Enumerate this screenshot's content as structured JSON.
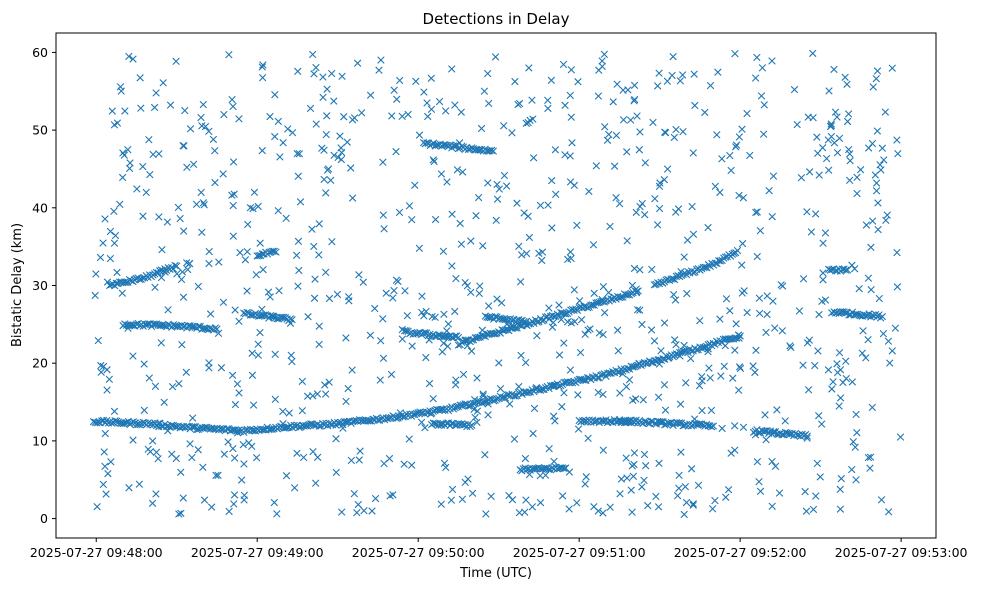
{
  "chart_data": {
    "type": "scatter",
    "title": "Detections in Delay",
    "xlabel": "Time (UTC)",
    "ylabel": "Bistatic Delay (km)",
    "x_unit": "time",
    "xlim": [
      "2025-07-27 09:47:45",
      "2025-07-27 09:53:13"
    ],
    "ylim": [
      -2.5,
      62.5
    ],
    "x_ticks": [
      "2025-07-27 09:48:00",
      "2025-07-27 09:49:00",
      "2025-07-27 09:50:00",
      "2025-07-27 09:51:00",
      "2025-07-27 09:52:00",
      "2025-07-27 09:53:00"
    ],
    "y_ticks": [
      0,
      10,
      20,
      30,
      40,
      50,
      60
    ],
    "marker": "x",
    "color": "#1f77b4",
    "grid": false,
    "legend": "none",
    "tracks": [
      {
        "t": [
          "09:47:59",
          "09:48:20",
          "09:48:35",
          "09:48:55",
          "09:49:10",
          "09:49:30",
          "09:49:50",
          "09:50:10",
          "09:50:30",
          "09:50:50",
          "09:51:10",
          "09:51:30",
          "09:51:45",
          "09:52:00"
        ],
        "y": [
          12.5,
          12.2,
          11.7,
          11.3,
          11.8,
          12.2,
          13.0,
          14.0,
          15.5,
          17.0,
          18.5,
          20.5,
          22.0,
          23.5
        ]
      },
      {
        "t": [
          "09:50:15",
          "09:50:30",
          "09:50:45",
          "09:51:00",
          "09:51:15",
          "09:51:22"
        ],
        "y": [
          22.5,
          24.0,
          25.5,
          27.0,
          28.5,
          29.3
        ]
      },
      {
        "t": [
          "09:48:05",
          "09:48:18",
          "09:48:30"
        ],
        "y": [
          30.0,
          31.0,
          32.5
        ]
      },
      {
        "t": [
          "09:49:00",
          "09:49:07"
        ],
        "y": [
          33.9,
          34.3
        ]
      },
      {
        "t": [
          "09:51:28",
          "09:51:40",
          "09:51:52",
          "09:51:59"
        ],
        "y": [
          30.0,
          31.5,
          33.0,
          34.5
        ]
      },
      {
        "t": [
          "09:48:10",
          "09:48:30",
          "09:48:45"
        ],
        "y": [
          25.0,
          24.8,
          24.4
        ]
      },
      {
        "t": [
          "09:48:55",
          "09:49:13"
        ],
        "y": [
          26.4,
          25.6
        ]
      },
      {
        "t": [
          "09:49:55",
          "09:50:15"
        ],
        "y": [
          24.0,
          23.3
        ]
      },
      {
        "t": [
          "09:50:25",
          "09:50:40"
        ],
        "y": [
          26.0,
          25.3
        ]
      },
      {
        "t": [
          "09:50:02",
          "09:50:28"
        ],
        "y": [
          48.3,
          47.3
        ]
      },
      {
        "t": [
          "09:51:15",
          "09:51:50"
        ],
        "y": [
          12.6,
          11.9
        ]
      },
      {
        "t": [
          "09:52:05",
          "09:52:25"
        ],
        "y": [
          11.3,
          10.6
        ]
      },
      {
        "t": [
          "09:50:05",
          "09:50:20"
        ],
        "y": [
          12.2,
          12.0
        ]
      },
      {
        "t": [
          "09:50:38",
          "09:50:55"
        ],
        "y": [
          6.3,
          6.5
        ]
      },
      {
        "t": [
          "09:52:35",
          "09:52:53"
        ],
        "y": [
          26.6,
          26.0
        ]
      },
      {
        "t": [
          "09:52:33",
          "09:52:40"
        ],
        "y": [
          32.1,
          32.0
        ]
      },
      {
        "t": [
          "09:51:00",
          "09:51:20"
        ],
        "y": [
          12.6,
          12.5
        ]
      }
    ],
    "scatter_noise": {
      "count": 950,
      "t_range": [
        "09:47:59",
        "09:53:00"
      ],
      "y_range": [
        0.5,
        60
      ]
    }
  }
}
